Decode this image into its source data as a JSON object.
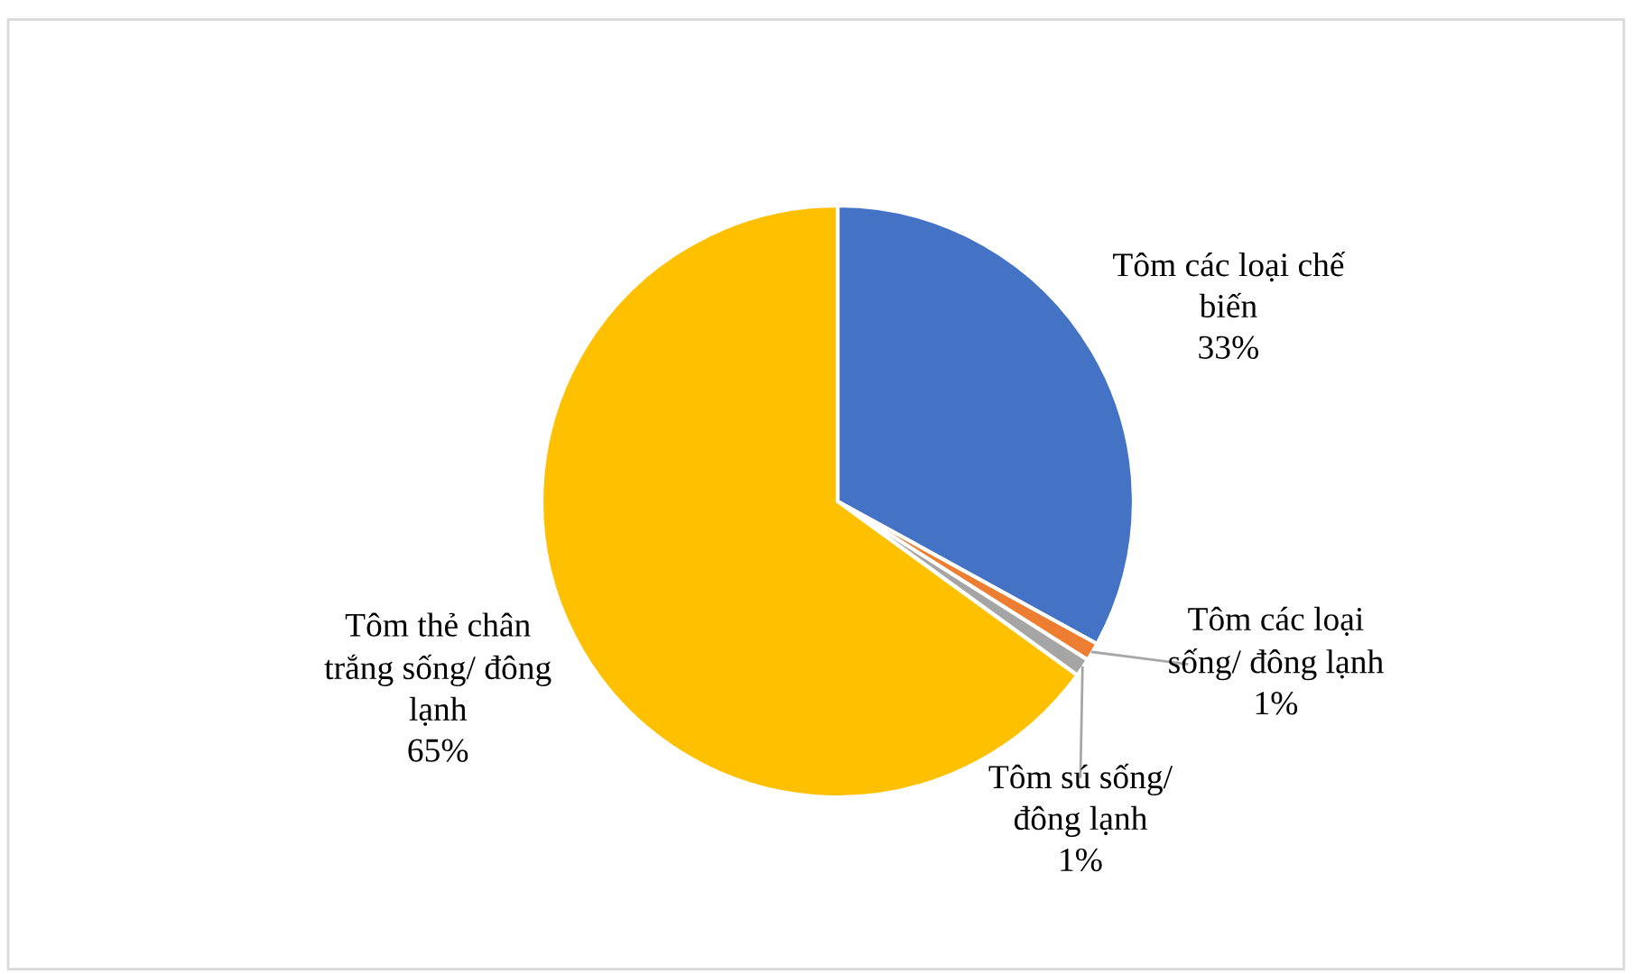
{
  "chart_data": {
    "type": "pie",
    "categories": [
      "Tôm các loại chế biến",
      "Tôm các loại sống/ đông lạnh",
      "Tôm sú sống/ đông lạnh",
      "Tôm thẻ chân trắng sống/ đông lạnh"
    ],
    "values": [
      33,
      1,
      1,
      65
    ],
    "colors": [
      "#4472c4",
      "#ed7d31",
      "#a5a5a5",
      "#ffc000"
    ],
    "value_labels": [
      "33%",
      "1%",
      "1%",
      "65%"
    ],
    "legend": false
  }
}
